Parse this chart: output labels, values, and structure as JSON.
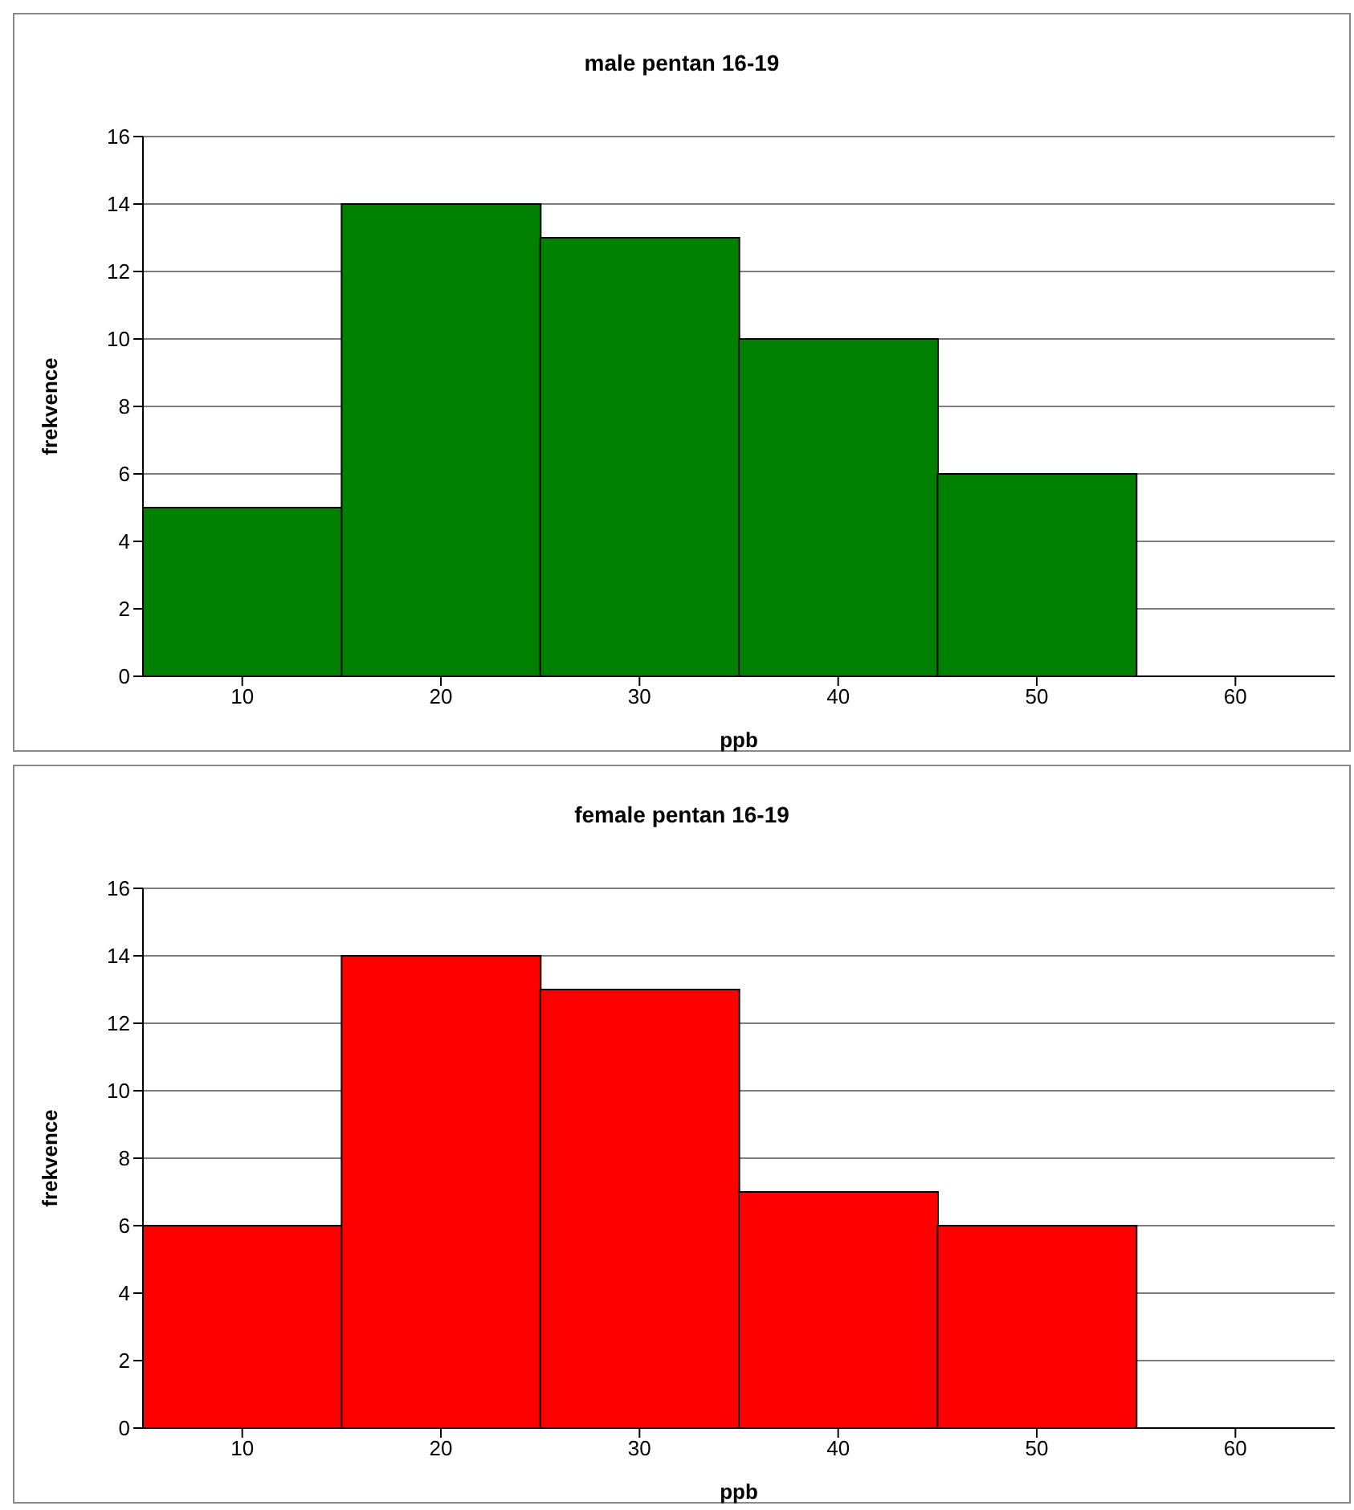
{
  "chart_data": [
    {
      "type": "bar",
      "title": "male pentan 16-19",
      "xlabel": "ppb",
      "ylabel": "frekvence",
      "categories": [
        "10",
        "20",
        "30",
        "40",
        "50",
        "60"
      ],
      "values": [
        5,
        14,
        13,
        10,
        6,
        null
      ],
      "color": "#008000",
      "ylim": [
        0,
        16
      ],
      "yticks": [
        0,
        2,
        4,
        6,
        8,
        10,
        12,
        14,
        16
      ],
      "grid": "y"
    },
    {
      "type": "bar",
      "title": "female pentan 16-19",
      "xlabel": "ppb",
      "ylabel": "frekvence",
      "categories": [
        "10",
        "20",
        "30",
        "40",
        "50",
        "60"
      ],
      "values": [
        6,
        14,
        13,
        7,
        6,
        null
      ],
      "color": "#ff0000",
      "ylim": [
        0,
        16
      ],
      "yticks": [
        0,
        2,
        4,
        6,
        8,
        10,
        12,
        14,
        16
      ],
      "grid": "y"
    }
  ]
}
